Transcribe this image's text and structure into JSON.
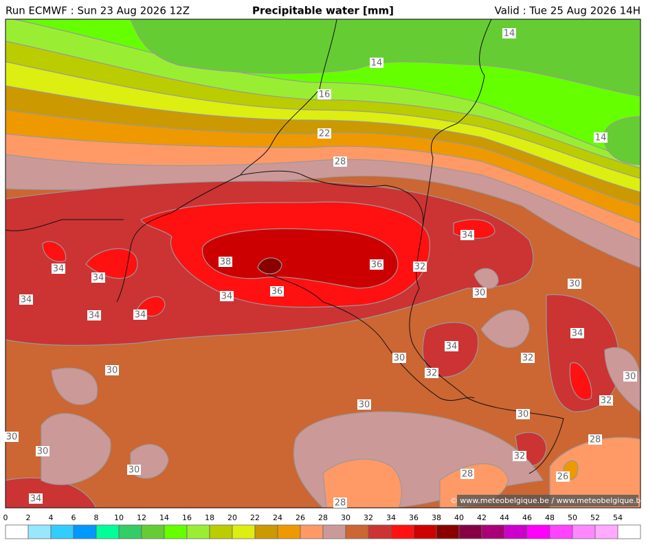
{
  "header": {
    "run": "Run ECMWF : Sun 23 Aug 2026 12Z",
    "title": "Precipitable water [mm]",
    "valid": "Valid : Tue 25 Aug 2026 14H"
  },
  "map": {
    "contour_labels": [
      "14",
      "14",
      "16",
      "22",
      "28",
      "14",
      "34",
      "38",
      "36",
      "32",
      "34",
      "34",
      "34",
      "34",
      "36",
      "30",
      "30",
      "34",
      "34",
      "34",
      "34",
      "30",
      "32",
      "32",
      "30",
      "30",
      "32",
      "30",
      "30",
      "30",
      "30",
      "28",
      "32",
      "30",
      "28",
      "26",
      "34",
      "28"
    ],
    "credit": "© www.meteobelgique.be / www.meteobelgique.be"
  },
  "colorbar": {
    "ticks": [
      0,
      2,
      4,
      6,
      8,
      10,
      12,
      14,
      16,
      18,
      20,
      22,
      24,
      26,
      28,
      30,
      32,
      34,
      36,
      38,
      40,
      42,
      44,
      46,
      48,
      50,
      52,
      54
    ],
    "colors": [
      "#ffffff",
      "#99e6ff",
      "#33ccff",
      "#0099ff",
      "#00ff99",
      "#33cc66",
      "#66cc33",
      "#66ff00",
      "#99ee33",
      "#bbcc00",
      "#ddee11",
      "#cc9900",
      "#ee9900",
      "#ff9966",
      "#cc9999",
      "#cc6633",
      "#cc3333",
      "#ff1111",
      "#cc0000",
      "#880000",
      "#880044",
      "#aa0077",
      "#cc00cc",
      "#ff00ff",
      "#ff44ff",
      "#ff88ff",
      "#ffaaff",
      "#ffffff"
    ]
  }
}
